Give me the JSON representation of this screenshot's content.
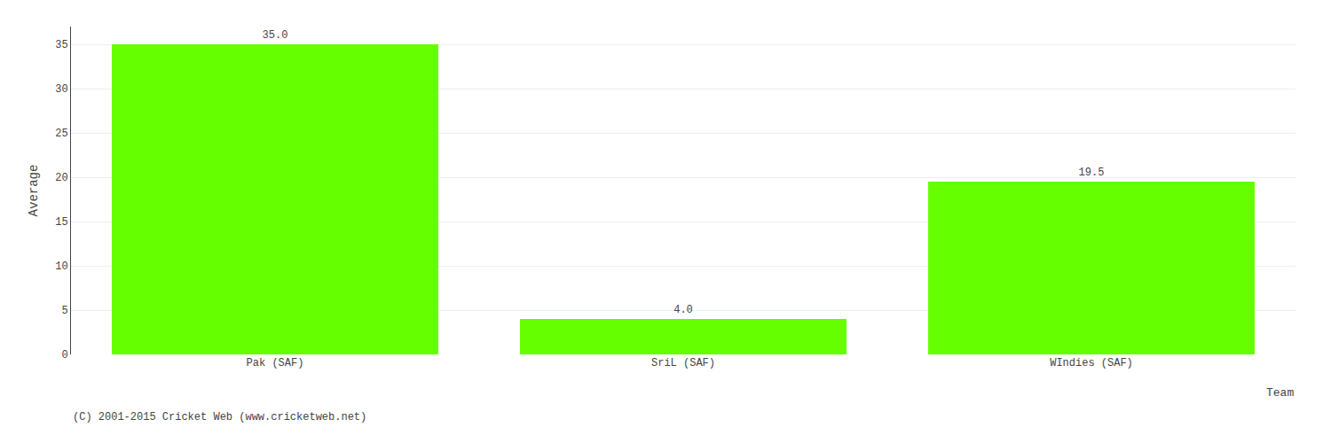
{
  "chart_data": {
    "type": "bar",
    "ylabel": "Average",
    "xlabel": "Team",
    "annotations": [
      "(C) 2001-2015 Cricket Web (www.cricketweb.net)"
    ],
    "categories": [
      "Pak (SAF)",
      "SriL (SAF)",
      "WIndies (SAF)"
    ],
    "values": [
      35.0,
      4.0,
      19.5
    ],
    "value_labels": [
      "35.0",
      "4.0",
      "19.5"
    ],
    "data_labels": true,
    "color": "#66ff00",
    "ylim": [
      0,
      37
    ],
    "yticks": [
      0,
      5,
      10,
      15,
      20,
      25,
      30,
      35
    ],
    "grid": true
  }
}
